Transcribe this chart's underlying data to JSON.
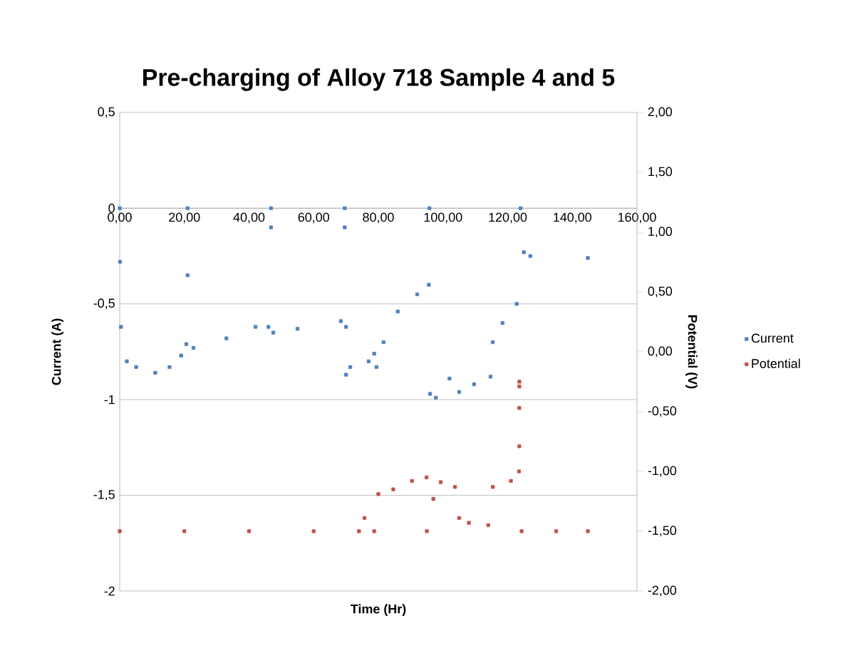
{
  "chart_data": {
    "type": "scatter",
    "title": "Pre-charging of Alloy 718 Sample 4 and 5",
    "xlabel": "Time (Hr)",
    "ylabel": "Current (A)",
    "y2label": "Potential (V)",
    "xlim": [
      0,
      160
    ],
    "xticks": [
      {
        "value": 0,
        "label": "0,00"
      },
      {
        "value": 20,
        "label": "20,00"
      },
      {
        "value": 40,
        "label": "40,00"
      },
      {
        "value": 60,
        "label": "60,00"
      },
      {
        "value": 80,
        "label": "80,00"
      },
      {
        "value": 100,
        "label": "100,00"
      },
      {
        "value": 120,
        "label": "120,00"
      },
      {
        "value": 140,
        "label": "140,00"
      },
      {
        "value": 160,
        "label": "160,00"
      }
    ],
    "ylim": [
      -2,
      0.5
    ],
    "yticks": [
      -2,
      {
        "value": -1.5,
        "label": "-1,5"
      },
      -1,
      {
        "value": -0.5,
        "label": "-0,5"
      },
      0,
      {
        "value": 0.5,
        "label": "0,5"
      }
    ],
    "y2lim": [
      -2,
      2
    ],
    "y2ticks": [
      {
        "value": -2,
        "label": "-2,00"
      },
      {
        "value": -1.5,
        "label": "-1,50"
      },
      {
        "value": -1,
        "label": "-1,00"
      },
      {
        "value": -0.5,
        "label": "-0,50"
      },
      {
        "value": 0,
        "label": "0,00"
      },
      {
        "value": 0.5,
        "label": "0,50"
      },
      {
        "value": 1,
        "label": "1,00"
      },
      {
        "value": 1.5,
        "label": "1,50"
      },
      {
        "value": 2,
        "label": "2,00"
      }
    ],
    "grid": "y",
    "legend": "right",
    "marker": "square",
    "series": [
      {
        "name": "Current",
        "color": "#4f81bd",
        "x": [
          0,
          0.1,
          0.4,
          2.2,
          5.1,
          11,
          15.4,
          19,
          20.6,
          21,
          21,
          22.8,
          33,
          42,
          46,
          46.8,
          46.8,
          47.5,
          55,
          68.4,
          69.6,
          69.6,
          70,
          70,
          71.3,
          77,
          78.7,
          79.4,
          81.6,
          86,
          92,
          95.6,
          95.8,
          96,
          97.8,
          102,
          105,
          109.6,
          114.7,
          115.4,
          118.4,
          122.8,
          124,
          125,
          127,
          144.8
        ],
        "values": [
          0,
          -0.28,
          -0.62,
          -0.8,
          -0.83,
          -0.86,
          -0.83,
          -0.77,
          -0.71,
          0,
          -0.35,
          -0.73,
          -0.68,
          -0.62,
          -0.62,
          0,
          -0.1,
          -0.65,
          -0.63,
          -0.59,
          0,
          -0.1,
          -0.62,
          -0.87,
          -0.83,
          -0.8,
          -0.76,
          -0.83,
          -0.7,
          -0.54,
          -0.45,
          -0.4,
          0,
          -0.97,
          -0.99,
          -0.89,
          -0.96,
          -0.92,
          -0.88,
          -0.7,
          -0.6,
          -0.5,
          0,
          -0.23,
          -0.25,
          -0.26
        ]
      },
      {
        "name": "Potential",
        "color": "#c0504d",
        "axis": "y2",
        "x": [
          0,
          20,
          40,
          60,
          74,
          75.7,
          78.7,
          80,
          84.6,
          90.4,
          94.9,
          95,
          97,
          99.3,
          103.7,
          105,
          108,
          114,
          115.4,
          121,
          123.5,
          123.6,
          123.6,
          123.6,
          123.6,
          124.3,
          135,
          144.8
        ],
        "values": [
          -1.5,
          -1.5,
          -1.5,
          -1.5,
          -1.5,
          -1.39,
          -1.5,
          -1.19,
          -1.15,
          -1.08,
          -1.05,
          -1.5,
          -1.23,
          -1.09,
          -1.13,
          -1.39,
          -1.43,
          -1.45,
          -1.13,
          -1.08,
          -1.0,
          -0.79,
          -0.25,
          -0.29,
          -0.47,
          -1.5,
          -1.5,
          -1.5
        ]
      }
    ]
  }
}
